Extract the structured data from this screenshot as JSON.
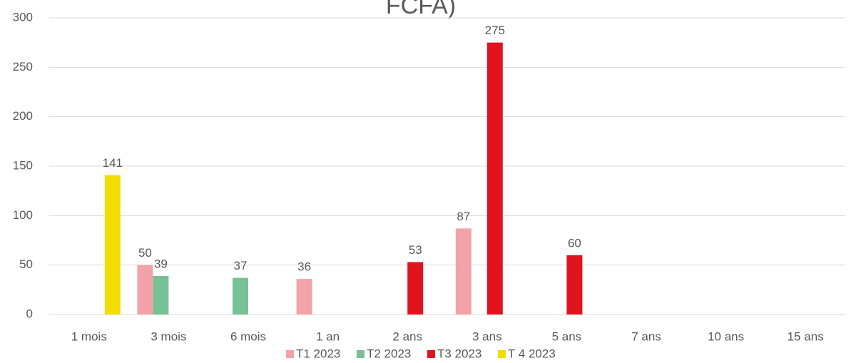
{
  "chart_data": {
    "type": "bar",
    "title": "FCFA)",
    "categories": [
      "1 mois",
      "3 mois",
      "6 mois",
      "1 an",
      "2 ans",
      "3 ans",
      "5 ans",
      "7 ans",
      "10 ans",
      "15 ans"
    ],
    "series": [
      {
        "name": "T1 2023",
        "color": "#f2a3a8",
        "values": [
          null,
          50,
          null,
          36,
          null,
          87,
          null,
          null,
          null,
          null
        ]
      },
      {
        "name": "T2 2023",
        "color": "#78c095",
        "values": [
          null,
          39,
          37,
          null,
          null,
          null,
          null,
          null,
          null,
          null
        ]
      },
      {
        "name": "T3 2023",
        "color": "#e0141e",
        "values": [
          null,
          null,
          null,
          null,
          53,
          275,
          60,
          null,
          null,
          null
        ]
      },
      {
        "name": "T 4 2023",
        "color": "#f2de00",
        "values": [
          141,
          null,
          null,
          null,
          null,
          null,
          null,
          null,
          null,
          null
        ]
      }
    ],
    "ylim": [
      0,
      300
    ],
    "yticks": [
      0,
      50,
      100,
      150,
      200,
      250,
      300
    ],
    "grid": true,
    "legend": "bottom"
  }
}
